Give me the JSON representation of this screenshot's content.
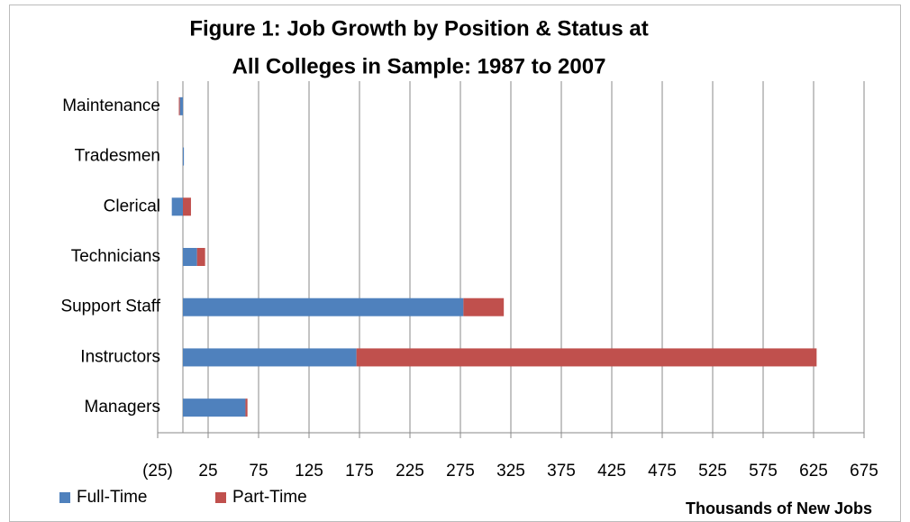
{
  "chart_data": {
    "type": "hbar_stacked",
    "title": [
      "Figure 1: Job Growth by Position & Status at",
      "All Colleges in Sample:  1987 to 2007"
    ],
    "x_label": "Thousands of New Jobs",
    "categories": [
      "Maintenance",
      "Tradesmen",
      "Clerical",
      "Technicians",
      "Support Staff",
      "Instructors",
      "Managers"
    ],
    "series": [
      {
        "name": "Full-Time",
        "color": "#4f81bd",
        "values": [
          -3,
          1,
          -11,
          14,
          278,
          172,
          62
        ]
      },
      {
        "name": "Part-Time",
        "color": "#c0504d",
        "values": [
          -1,
          0,
          8,
          8,
          40,
          456,
          2
        ]
      }
    ],
    "xlim": [
      -25,
      675
    ],
    "xticks": [
      {
        "value": -25,
        "label": "(25)"
      },
      25,
      75,
      125,
      175,
      225,
      275,
      325,
      375,
      425,
      475,
      525,
      575,
      625,
      675
    ],
    "grid": true
  }
}
